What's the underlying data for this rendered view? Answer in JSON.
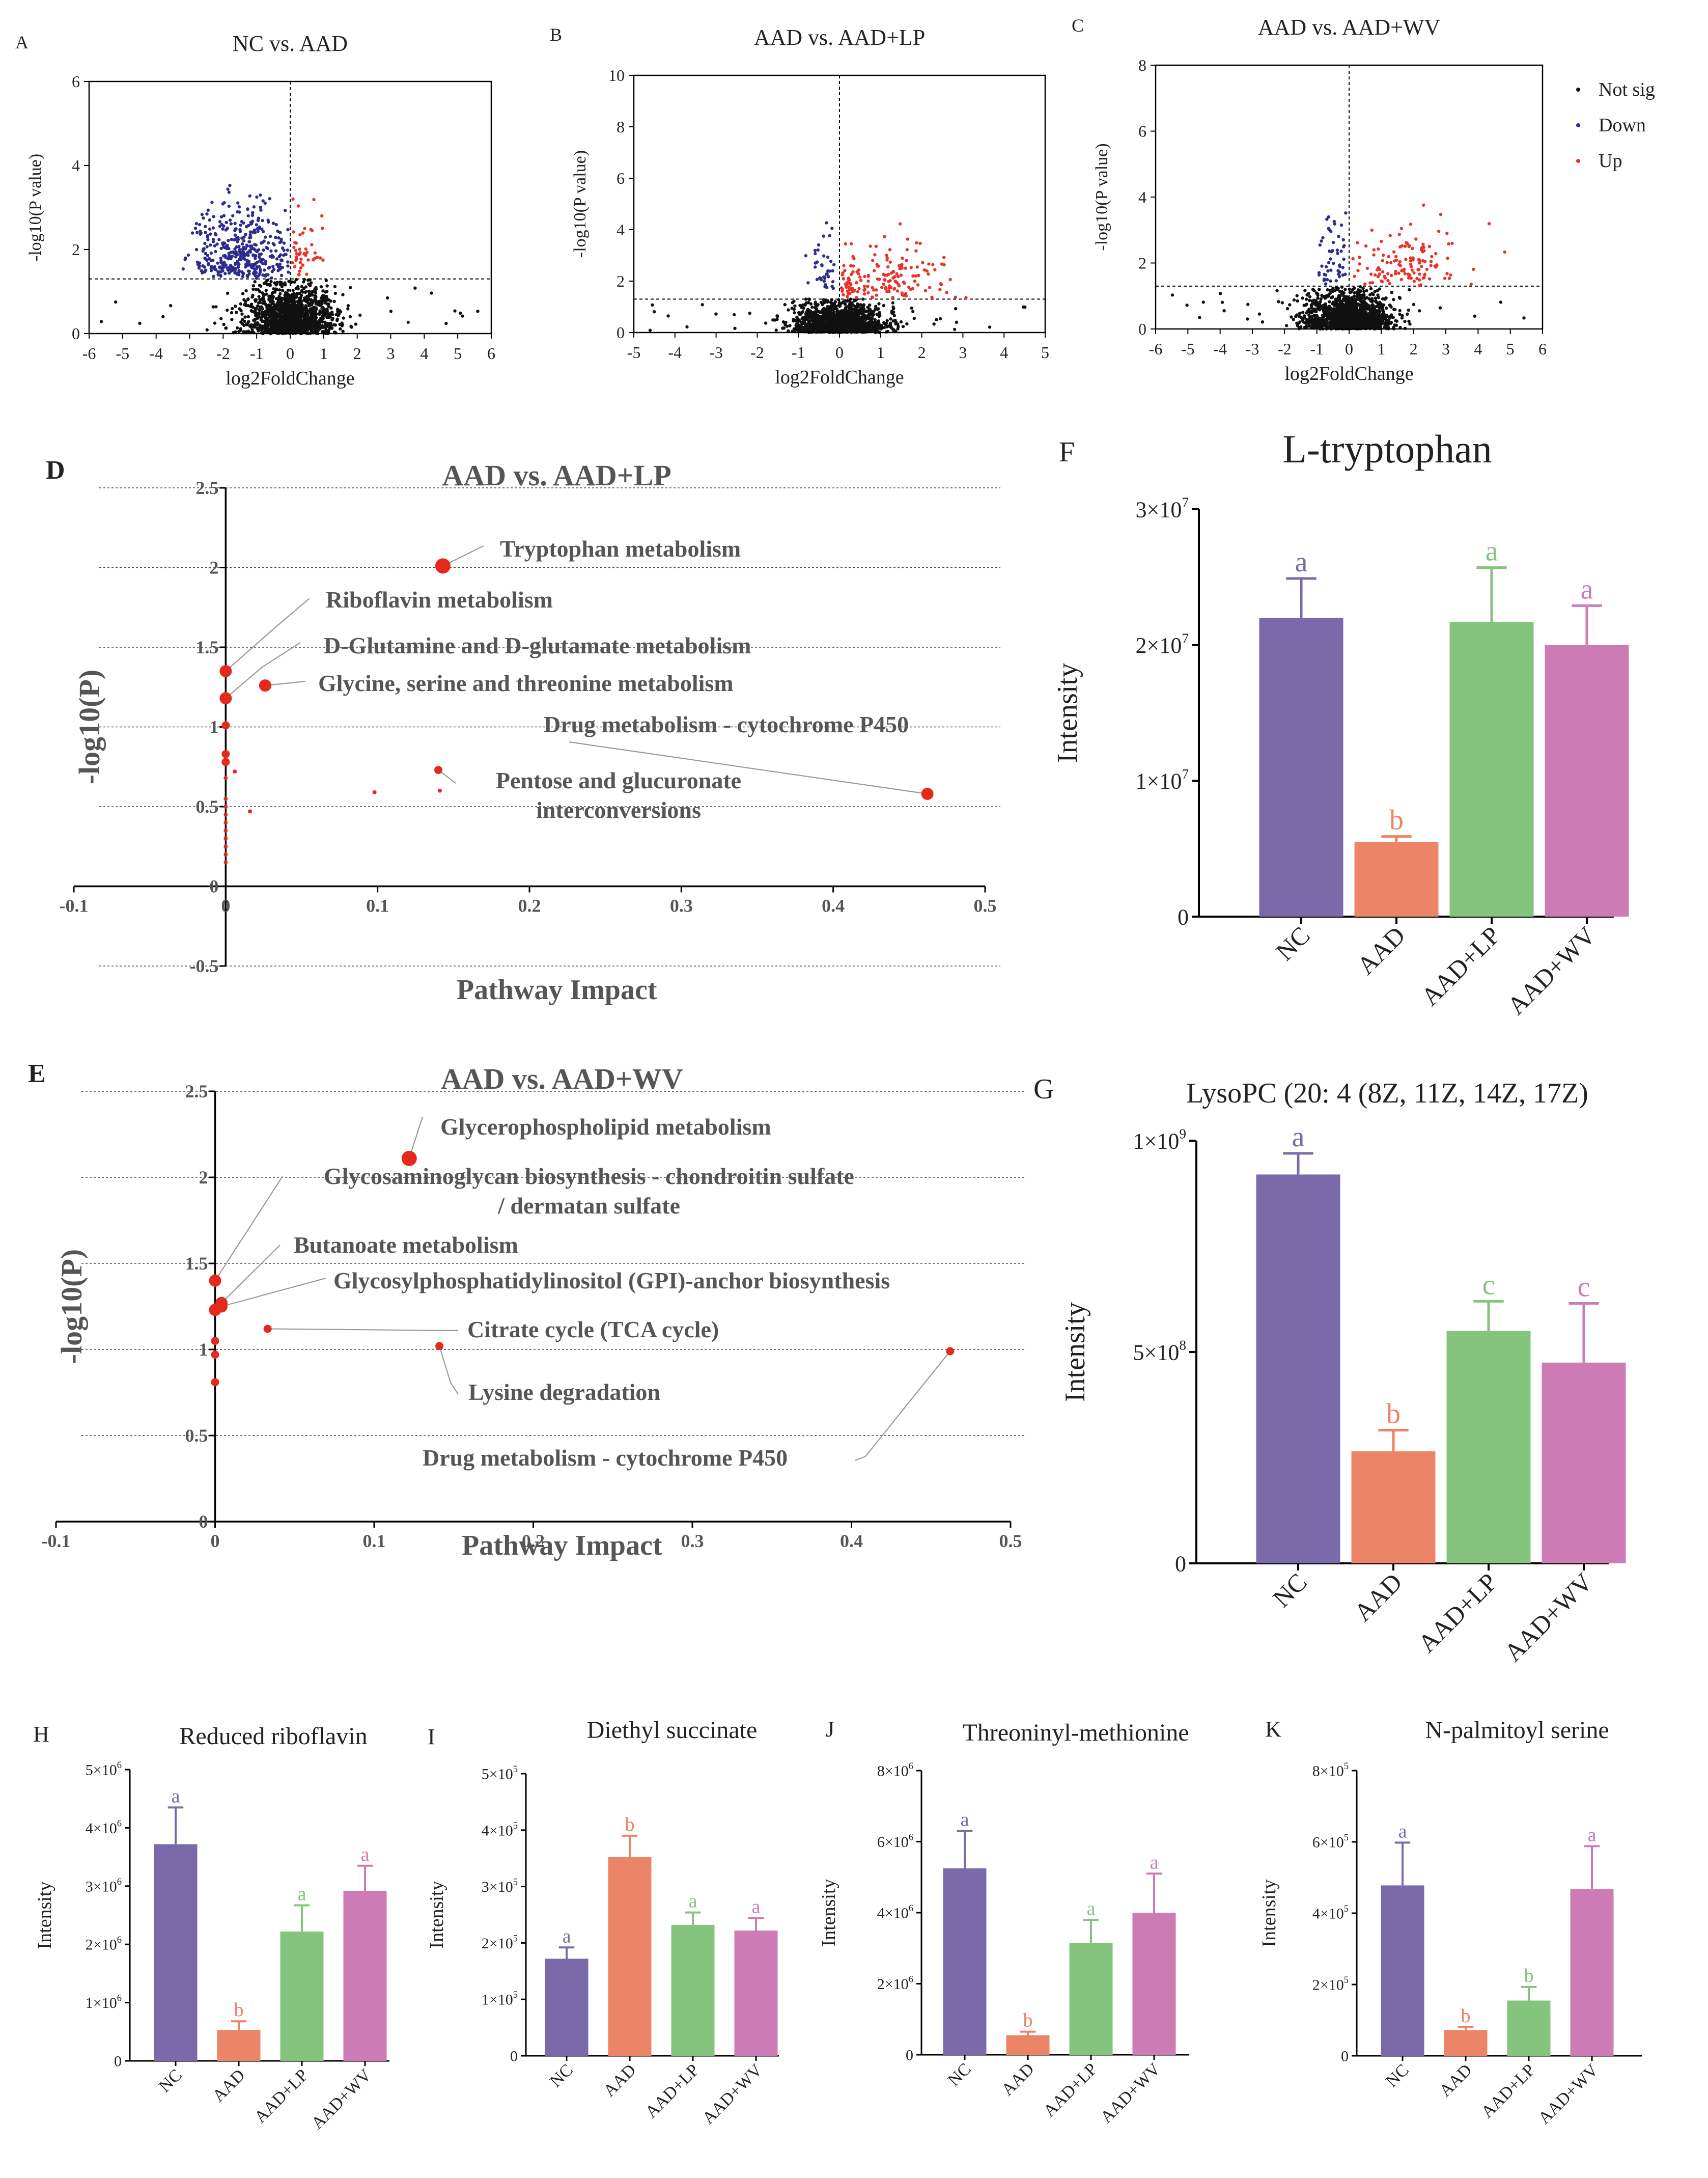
{
  "colors": {
    "nc": "#7b6aaa",
    "aad": "#ec8468",
    "lp": "#84c47c",
    "wv": "#cd7bb4",
    "up": "#e8332a",
    "down": "#2c2c8c",
    "notsig": "#111111",
    "pathway": "#e52a1d"
  },
  "chart_data": [
    {
      "panel": "A",
      "type": "scatter",
      "title": "NC vs. AAD",
      "xlabel": "log2FoldChange",
      "ylabel": "-log10(P value)",
      "xlim": [
        -6,
        6
      ],
      "ylim": [
        0,
        6
      ],
      "xticks": [
        "-6",
        "-5",
        "-4",
        "-3",
        "-2",
        "-1",
        "0",
        "1",
        "2",
        "3",
        "4",
        "5",
        "6"
      ],
      "yticks": [
        "0",
        "2",
        "4",
        "6"
      ],
      "threshold_y": 1.3,
      "cluster_down": {
        "x_center": -1.4,
        "x_spread": 0.75,
        "count": 420
      },
      "cluster_up": {
        "x_center": 0.4,
        "x_spread": 0.3,
        "count": 45
      }
    },
    {
      "panel": "B",
      "type": "scatter",
      "title": "AAD vs. AAD+LP",
      "xlabel": "log2FoldChange",
      "ylabel": "-log10(P value)",
      "xlim": [
        -5,
        5
      ],
      "ylim": [
        0,
        10
      ],
      "xticks": [
        "-5",
        "-4",
        "-3",
        "-2",
        "-1",
        "0",
        "1",
        "2",
        "3",
        "4",
        "5"
      ],
      "yticks": [
        "0",
        "2",
        "4",
        "6",
        "8",
        "10"
      ],
      "threshold_y": 1.3,
      "cluster_down": {
        "x_center": -0.4,
        "x_spread": 0.2,
        "count": 40
      },
      "cluster_up": {
        "x_center": 1.1,
        "x_spread": 0.8,
        "count": 170
      }
    },
    {
      "panel": "C",
      "type": "scatter",
      "title": "AAD vs. AAD+WV",
      "xlabel": "log2FoldChange",
      "ylabel": "-log10(P value)",
      "xlim": [
        -6,
        6
      ],
      "ylim": [
        0,
        8
      ],
      "xticks": [
        "-6",
        "-5",
        "-4",
        "-3",
        "-2",
        "-1",
        "0",
        "1",
        "2",
        "3",
        "4",
        "5",
        "6"
      ],
      "yticks": [
        "0",
        "2",
        "4",
        "6",
        "8"
      ],
      "threshold_y": 1.3,
      "legend": [
        "Not sig",
        "Down",
        "Up"
      ],
      "cluster_down": {
        "x_center": -0.5,
        "x_spread": 0.25,
        "count": 50
      },
      "cluster_up": {
        "x_center": 1.8,
        "x_spread": 0.8,
        "count": 130
      }
    },
    {
      "panel": "D",
      "type": "scatter",
      "title": "AAD vs. AAD+LP",
      "xlabel": "Pathway Impact",
      "ylabel": "-log10(P)",
      "xlim": [
        -0.1,
        0.5
      ],
      "ylim": [
        -0.5,
        2.5
      ],
      "xticks": [
        "-0.1",
        "0",
        "0.1",
        "0.2",
        "0.3",
        "0.4",
        "0.5"
      ],
      "yticks": [
        "-0.5",
        "0",
        "0.5",
        "1",
        "1.5",
        "2",
        "2.5"
      ],
      "points": [
        {
          "x": 0.143,
          "y": 2.01,
          "size": "large",
          "label": "Tryptophan metabolism"
        },
        {
          "x": 0,
          "y": 1.35,
          "size": "medium",
          "label": "Riboflavin metabolism"
        },
        {
          "x": 0,
          "y": 1.18,
          "size": "medium",
          "label": "D-Glutamine and D-glutamate metabolism"
        },
        {
          "x": 0.026,
          "y": 1.26,
          "size": "medium",
          "label": "Glycine, serine and threonine metabolism"
        },
        {
          "x": 0.462,
          "y": 0.58,
          "size": "medium",
          "label": "Drug metabolism - cytochrome P450"
        },
        {
          "x": 0.14,
          "y": 0.73,
          "size": "small",
          "label": "Pentose and glucuronate interconversions"
        },
        {
          "x": 0,
          "y": 1.01,
          "size": "small"
        },
        {
          "x": 0,
          "y": 0.83,
          "size": "small"
        },
        {
          "x": 0,
          "y": 0.78,
          "size": "small"
        },
        {
          "x": 0.006,
          "y": 0.72,
          "size": "tiny"
        },
        {
          "x": 0,
          "y": 0.68,
          "size": "tiny"
        },
        {
          "x": 0,
          "y": 0.55,
          "size": "tiny"
        },
        {
          "x": 0,
          "y": 0.5,
          "size": "tiny"
        },
        {
          "x": 0,
          "y": 0.45,
          "size": "tiny"
        },
        {
          "x": 0,
          "y": 0.4,
          "size": "tiny"
        },
        {
          "x": 0,
          "y": 0.35,
          "size": "tiny"
        },
        {
          "x": 0,
          "y": 0.3,
          "size": "tiny"
        },
        {
          "x": 0,
          "y": 0.25,
          "size": "tiny"
        },
        {
          "x": 0,
          "y": 0.2,
          "size": "tiny"
        },
        {
          "x": 0,
          "y": 0.15,
          "size": "tiny"
        },
        {
          "x": 0.016,
          "y": 0.47,
          "size": "tiny"
        },
        {
          "x": 0.098,
          "y": 0.59,
          "size": "tiny"
        },
        {
          "x": 0.141,
          "y": 0.6,
          "size": "tiny"
        }
      ],
      "label_lines": {
        "Tryptophan metabolism": [
          "Tryptophan metabolism"
        ],
        "Riboflavin metabolism": [
          "Riboflavin metabolism"
        ],
        "D-Glutamine and D-glutamate metabolism": [
          "D-Glutamine and D-glutamate metabolism"
        ],
        "Glycine, serine and threonine metabolism": [
          "Glycine, serine and threonine metabolism"
        ],
        "Drug metabolism - cytochrome P450": [
          "Drug metabolism - cytochrome P450"
        ],
        "Pentose and glucuronate interconversions": [
          "Pentose and glucuronate",
          "interconversions"
        ]
      }
    },
    {
      "panel": "E",
      "type": "scatter",
      "title": "AAD vs. AAD+WV",
      "xlabel": "Pathway Impact",
      "ylabel": "-log10(P)",
      "xlim": [
        -0.1,
        0.5
      ],
      "ylim": [
        0,
        2.5
      ],
      "xticks": [
        "-0.1",
        "0",
        "0.1",
        "0.2",
        "0.3",
        "0.4",
        "0.5"
      ],
      "yticks": [
        "0",
        "0.5",
        "1",
        "1.5",
        "2",
        "2.5"
      ],
      "points": [
        {
          "x": 0.122,
          "y": 2.11,
          "size": "large",
          "label": "Glycerophospholipid metabolism"
        },
        {
          "x": 0,
          "y": 1.4,
          "size": "medium",
          "label": "Glycosaminoglycan biosynthesis - chondroitin sulfate / dermatan sulfate"
        },
        {
          "x": 0.004,
          "y": 1.27,
          "size": "medium",
          "label": "Butanoate metabolism"
        },
        {
          "x": 0.004,
          "y": 1.25,
          "size": "medium",
          "label": "Glycosylphosphatidylinositol (GPI)-anchor biosynthesis"
        },
        {
          "x": 0.033,
          "y": 1.12,
          "size": "small",
          "label": "Citrate cycle (TCA cycle)"
        },
        {
          "x": 0.141,
          "y": 1.02,
          "size": "small",
          "label": "Lysine degradation"
        },
        {
          "x": 0.462,
          "y": 0.99,
          "size": "small",
          "label": "Drug metabolism - cytochrome P450"
        },
        {
          "x": 0,
          "y": 1.23,
          "size": "medium"
        },
        {
          "x": 0,
          "y": 1.05,
          "size": "small"
        },
        {
          "x": 0,
          "y": 0.97,
          "size": "small"
        },
        {
          "x": 0,
          "y": 0.81,
          "size": "small"
        }
      ],
      "label_lines": {
        "Glycerophospholipid metabolism": [
          "Glycerophospholipid metabolism"
        ],
        "Glycosaminoglycan biosynthesis - chondroitin sulfate / dermatan sulfate": [
          "Glycosaminoglycan biosynthesis - chondroitin sulfate",
          "/ dermatan sulfate"
        ],
        "Butanoate metabolism": [
          "Butanoate metabolism"
        ],
        "Glycosylphosphatidylinositol (GPI)-anchor biosynthesis": [
          "Glycosylphosphatidylinositol (GPI)-anchor biosynthesis"
        ],
        "Citrate cycle (TCA cycle)": [
          "Citrate cycle (TCA cycle)"
        ],
        "Lysine degradation": [
          "Lysine degradation"
        ],
        "Drug metabolism - cytochrome P450": [
          "Drug metabolism - cytochrome P450"
        ]
      }
    },
    {
      "panel": "F",
      "type": "bar",
      "title": "L-tryptophan",
      "ylabel": "Intensity",
      "categories": [
        "NC",
        "AAD",
        "AAD+LP",
        "AAD+WV"
      ],
      "values": [
        22000000.0,
        5500000.0,
        21700000.0,
        20000000.0
      ],
      "errors": [
        2900000.0,
        400000.0,
        4000000.0,
        2900000.0
      ],
      "letters": [
        "a",
        "b",
        "a",
        "a"
      ],
      "ylim": [
        0,
        30000000.0
      ],
      "yticks": [
        {
          "v": 0,
          "m": "0",
          "e": ""
        },
        {
          "v": 10000000.0,
          "m": "1×10",
          "e": "7"
        },
        {
          "v": 20000000.0,
          "m": "2×10",
          "e": "7"
        },
        {
          "v": 30000000.0,
          "m": "3×10",
          "e": "7"
        }
      ]
    },
    {
      "panel": "G",
      "type": "bar",
      "title": "LysoPC (20: 4 (8Z, 11Z, 14Z, 17Z)",
      "ylabel": "Intensity",
      "categories": [
        "NC",
        "AAD",
        "AAD+LP",
        "AAD+WV"
      ],
      "values": [
        920000000.0,
        265000000.0,
        550000000.0,
        475000000.0
      ],
      "errors": [
        50000000.0,
        50000000.0,
        70000000.0,
        140000000.0
      ],
      "letters": [
        "a",
        "b",
        "c",
        "c"
      ],
      "ylim": [
        0,
        1000000000.0
      ],
      "yticks": [
        {
          "v": 0,
          "m": "0",
          "e": ""
        },
        {
          "v": 500000000.0,
          "m": "5×10",
          "e": "8"
        },
        {
          "v": 1000000000.0,
          "m": "1×10",
          "e": "9"
        }
      ]
    },
    {
      "panel": "H",
      "type": "bar",
      "title": "Reduced riboflavin",
      "ylabel": "Intensity",
      "categories": [
        "NC",
        "AAD",
        "AAD+LP",
        "AAD+WV"
      ],
      "values": [
        3720000.0,
        530000.0,
        2220000.0,
        2920000.0
      ],
      "errors": [
        630000.0,
        150000.0,
        450000.0,
        430000.0
      ],
      "letters": [
        "a",
        "b",
        "a",
        "a"
      ],
      "ylim": [
        0,
        5000000.0
      ],
      "yticks": [
        {
          "v": 0,
          "m": "0",
          "e": ""
        },
        {
          "v": 1000000.0,
          "m": "1×10",
          "e": "6"
        },
        {
          "v": 2000000.0,
          "m": "2×10",
          "e": "6"
        },
        {
          "v": 3000000.0,
          "m": "3×10",
          "e": "6"
        },
        {
          "v": 4000000.0,
          "m": "4×10",
          "e": "6"
        },
        {
          "v": 5000000.0,
          "m": "5×10",
          "e": "6"
        }
      ]
    },
    {
      "panel": "I",
      "type": "bar",
      "title": "Diethyl succinate",
      "ylabel": "Intensity",
      "categories": [
        "NC",
        "AAD",
        "AAD+LP",
        "AAD+WV"
      ],
      "values": [
        172000.0,
        352000.0,
        232000.0,
        222000.0
      ],
      "errors": [
        20000.0,
        38000.0,
        22000.0,
        22000.0
      ],
      "letters": [
        "a",
        "b",
        "a",
        "a"
      ],
      "ylim": [
        0,
        500000.0
      ],
      "yticks": [
        {
          "v": 0,
          "m": "0",
          "e": ""
        },
        {
          "v": 100000.0,
          "m": "1×10",
          "e": "5"
        },
        {
          "v": 200000.0,
          "m": "2×10",
          "e": "5"
        },
        {
          "v": 300000.0,
          "m": "3×10",
          "e": "5"
        },
        {
          "v": 400000.0,
          "m": "4×10",
          "e": "5"
        },
        {
          "v": 500000.0,
          "m": "5×10",
          "e": "5"
        }
      ]
    },
    {
      "panel": "J",
      "type": "bar",
      "title": "Threoninyl-methionine",
      "ylabel": "Intensity",
      "categories": [
        "NC",
        "AAD",
        "AAD+LP",
        "AAD+WV"
      ],
      "values": [
        5250000.0,
        550000.0,
        3150000.0,
        4000000.0
      ],
      "errors": [
        1050000.0,
        100000.0,
        650000.0,
        1100000.0
      ],
      "letters": [
        "a",
        "b",
        "a",
        "a"
      ],
      "ylim": [
        0,
        8000000.0
      ],
      "yticks": [
        {
          "v": 0,
          "m": "0",
          "e": ""
        },
        {
          "v": 2000000.0,
          "m": "2×10",
          "e": "6"
        },
        {
          "v": 4000000.0,
          "m": "4×10",
          "e": "6"
        },
        {
          "v": 6000000.0,
          "m": "6×10",
          "e": "6"
        },
        {
          "v": 8000000.0,
          "m": "8×10",
          "e": "6"
        }
      ]
    },
    {
      "panel": "K",
      "type": "bar",
      "title": "N-palmitoyl serine",
      "ylabel": "Intensity",
      "categories": [
        "NC",
        "AAD",
        "AAD+LP",
        "AAD+WV"
      ],
      "values": [
        478000.0,
        72000.0,
        155000.0,
        468000.0
      ],
      "errors": [
        120000.0,
        8000.0,
        38000.0,
        120000.0
      ],
      "letters": [
        "a",
        "b",
        "b",
        "a"
      ],
      "ylim": [
        0,
        800000.0
      ],
      "yticks": [
        {
          "v": 0,
          "m": "0",
          "e": ""
        },
        {
          "v": 200000.0,
          "m": "2×10",
          "e": "5"
        },
        {
          "v": 400000.0,
          "m": "4×10",
          "e": "5"
        },
        {
          "v": 600000.0,
          "m": "6×10",
          "e": "5"
        },
        {
          "v": 800000.0,
          "m": "8×10",
          "e": "5"
        }
      ]
    }
  ]
}
